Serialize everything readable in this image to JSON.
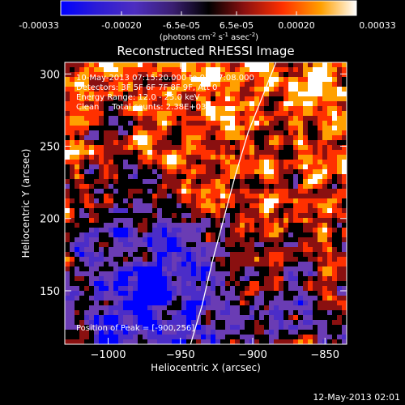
{
  "colorbar": {
    "tick_labels": [
      "-0.00033",
      "-0.00020",
      "-6.5e-05",
      "6.5e-05",
      "0.00020",
      "0.00033"
    ],
    "unit_base": "(photons cm",
    "unit_exp1": "-2",
    "unit_mid": " s",
    "unit_exp2": "-1",
    "unit_mid2": " asec",
    "unit_exp3": "-2",
    "unit_end": ")",
    "range": [
      -0.00033,
      0.00033
    ]
  },
  "annotations": {
    "time_range": "10-May-2013 07:15:20.000 to 07:17:08.000",
    "detectors": "Detectors: 3F 5F 6F 7F 8F 9F, Att 0",
    "energy": "Energy Range: 12.0 - 25.0 keV",
    "clean": "Clean     Total counts: 2.38E+03",
    "peak": "Position of Peak = [-900,256]"
  },
  "footer": {
    "timestamp": "12-May-2013 02:01"
  },
  "chart_data": {
    "type": "heatmap",
    "title": "Reconstructed RHESSI Image",
    "xlabel": "Heliocentric X (arcsec)",
    "ylabel": "Heliocentric Y (arcsec)",
    "xlim": [
      -1030,
      -835
    ],
    "ylim": [
      113,
      308
    ],
    "x_ticks": [
      -1000,
      -950,
      -900,
      -850
    ],
    "y_ticks": [
      150,
      200,
      250,
      300
    ],
    "x_tick_labels": [
      "−1000",
      "−950",
      "−900",
      "−850"
    ],
    "y_tick_labels": [
      "150",
      "200",
      "250",
      "300"
    ],
    "colormap": [
      "#0000ff",
      "#4b2dc8",
      "#6a3cb4",
      "#000000",
      "#8a1010",
      "#ff3000",
      "#ffa000",
      "#ffffff"
    ],
    "limb_curve": [
      [
        -943,
        113
      ],
      [
        -935,
        140
      ],
      [
        -928,
        170
      ],
      [
        -920,
        200
      ],
      [
        -912,
        230
      ],
      [
        -903,
        260
      ],
      [
        -893,
        285
      ],
      [
        -884,
        308
      ]
    ],
    "peak_position": [
      -900,
      256
    ]
  }
}
